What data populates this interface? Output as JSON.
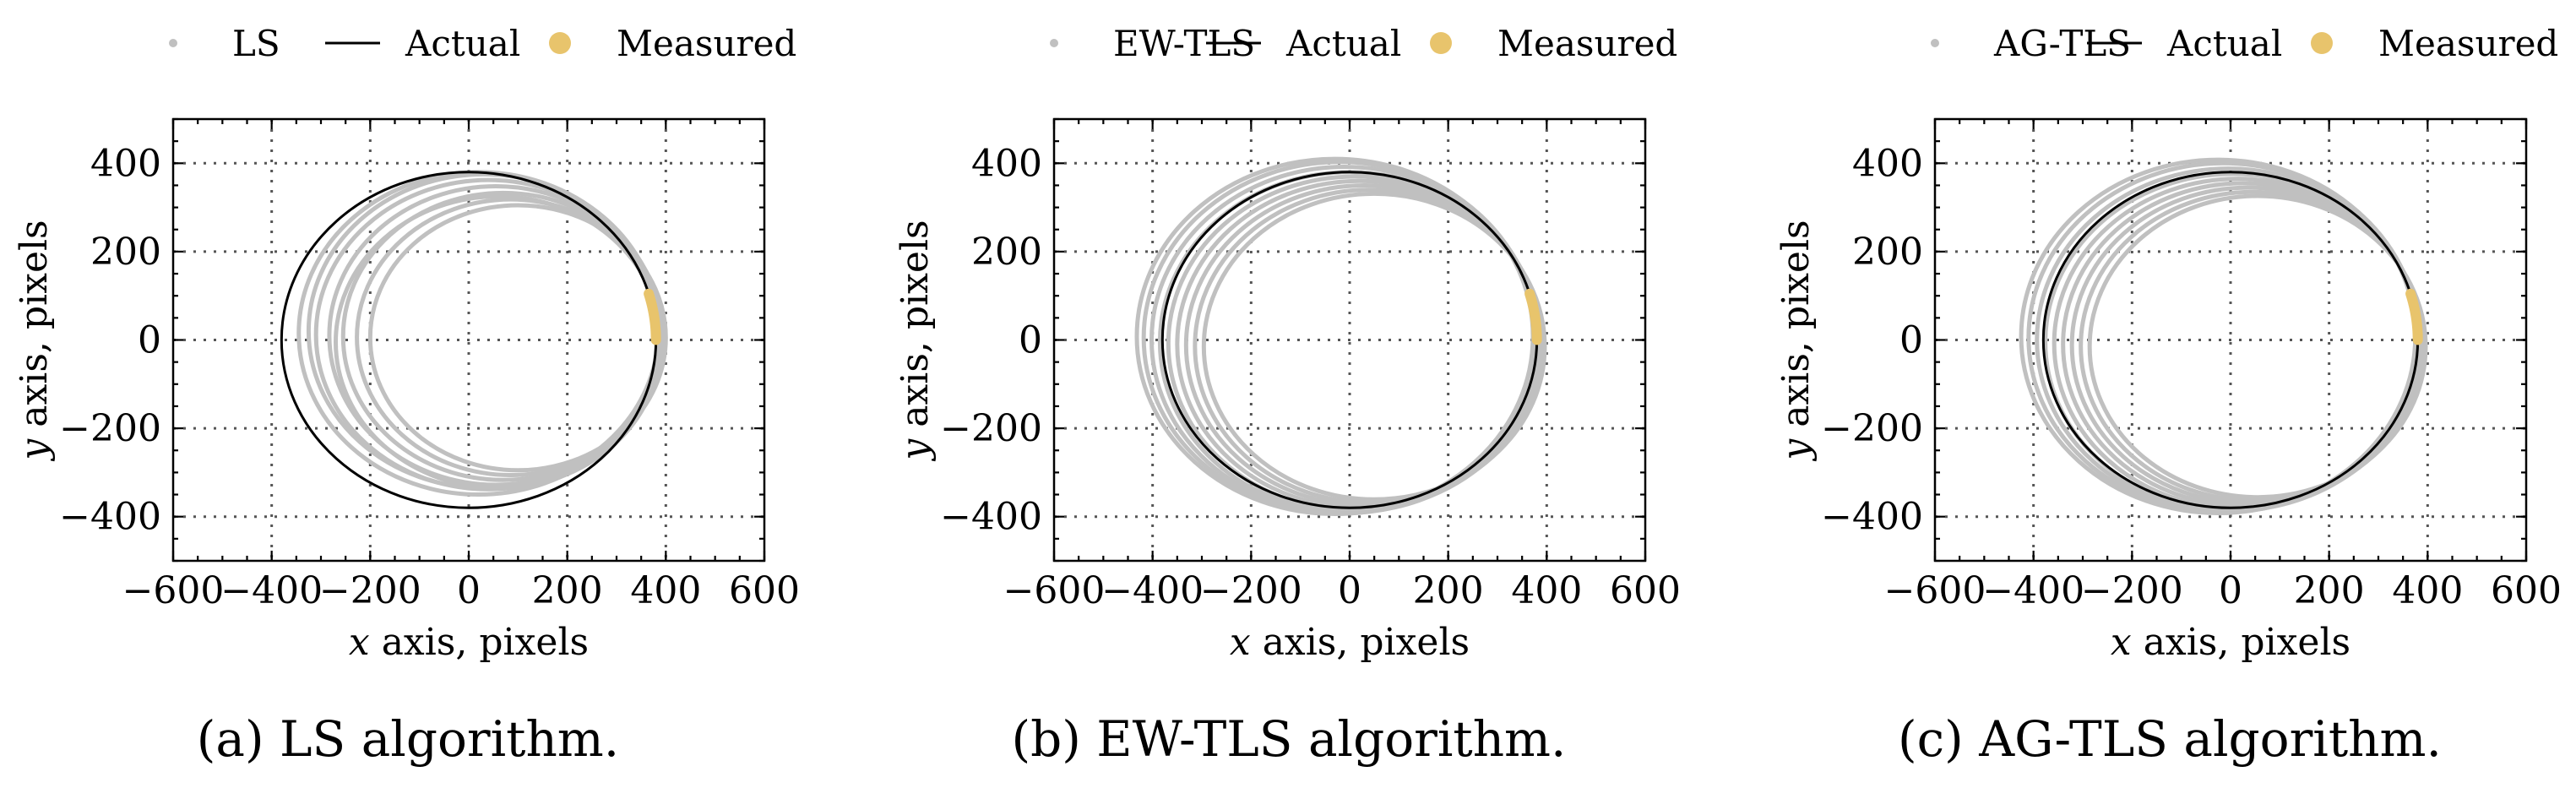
{
  "colors": {
    "estimated": "#c0c0c0",
    "actual": "#000000",
    "measured": "#e8c46c",
    "grid": "#555555"
  },
  "panels": [
    {
      "legend": {
        "estimate_label": "LS",
        "actual_label": "Actual",
        "measured_label": "Measured"
      },
      "xlabel_var": "x",
      "xlabel_rest": " axis, pixels",
      "ylabel_var": "y",
      "ylabel_rest": " axis, pixels",
      "caption": "(a)  LS algorithm."
    },
    {
      "legend": {
        "estimate_label": "EW-TLS",
        "actual_label": "Actual",
        "measured_label": "Measured"
      },
      "xlabel_var": "x",
      "xlabel_rest": " axis, pixels",
      "ylabel_var": "y",
      "ylabel_rest": " axis, pixels",
      "caption": "(b)  EW-TLS algorithm."
    },
    {
      "legend": {
        "estimate_label": "AG-TLS",
        "actual_label": "Actual",
        "measured_label": "Measured"
      },
      "xlabel_var": "x",
      "xlabel_rest": " axis, pixels",
      "ylabel_var": "y",
      "ylabel_rest": " axis, pixels",
      "caption": "(c)  AG-TLS algorithm."
    }
  ],
  "chart_data": [
    {
      "type": "scatter",
      "title": "LS",
      "xlabel": "x axis, pixels",
      "ylabel": "y axis, pixels",
      "xlim": [
        -600,
        600
      ],
      "ylim": [
        -500,
        500
      ],
      "xticks": [
        -600,
        -400,
        -200,
        0,
        200,
        400,
        600
      ],
      "yticks": [
        -400,
        -200,
        0,
        200,
        400
      ],
      "xtick_labels": [
        "−600",
        "−400",
        "−200",
        "0",
        "200",
        "400",
        "600"
      ],
      "ytick_labels": [
        "−400",
        "−200",
        "0",
        "200",
        "400"
      ],
      "grid": true,
      "legend_position": "top",
      "series": [
        {
          "name": "Actual",
          "kind": "circle",
          "center": [
            0,
            0
          ],
          "radius": 380
        },
        {
          "name": "Measured",
          "kind": "arc",
          "center": [
            0,
            0
          ],
          "radius": 380,
          "start_deg": 0,
          "end_deg": 16
        },
        {
          "name": "LS",
          "kind": "estimated_circles",
          "circles": [
            {
              "cx": 20,
              "cy": 15,
              "r": 365
            },
            {
              "cx": 40,
              "cy": 12,
              "r": 350
            },
            {
              "cx": 55,
              "cy": 10,
              "r": 338
            },
            {
              "cx": 70,
              "cy": 8,
              "r": 325
            },
            {
              "cx": 85,
              "cy": 6,
              "r": 312
            },
            {
              "cx": 100,
              "cy": 5,
              "r": 300
            },
            {
              "cx": 60,
              "cy": -5,
              "r": 330
            },
            {
              "cx": 30,
              "cy": 20,
              "r": 355
            }
          ]
        }
      ]
    },
    {
      "type": "scatter",
      "title": "EW-TLS",
      "xlabel": "x axis, pixels",
      "ylabel": "y axis, pixels",
      "xlim": [
        -600,
        600
      ],
      "ylim": [
        -500,
        500
      ],
      "xticks": [
        -600,
        -400,
        -200,
        0,
        200,
        400,
        600
      ],
      "yticks": [
        -400,
        -200,
        0,
        200,
        400
      ],
      "xtick_labels": [
        "−600",
        "−400",
        "−200",
        "0",
        "200",
        "400",
        "600"
      ],
      "ytick_labels": [
        "−400",
        "−200",
        "0",
        "200",
        "400"
      ],
      "grid": true,
      "legend_position": "top",
      "series": [
        {
          "name": "Actual",
          "kind": "circle",
          "center": [
            0,
            0
          ],
          "radius": 380
        },
        {
          "name": "Measured",
          "kind": "arc",
          "center": [
            0,
            0
          ],
          "radius": 380,
          "start_deg": 0,
          "end_deg": 16
        },
        {
          "name": "EW-TLS",
          "kind": "estimated_circles",
          "circles": [
            {
              "cx": -20,
              "cy": 5,
              "r": 398
            },
            {
              "cx": -10,
              "cy": 0,
              "r": 392
            },
            {
              "cx": 0,
              "cy": -5,
              "r": 385
            },
            {
              "cx": 10,
              "cy": -8,
              "r": 378
            },
            {
              "cx": 20,
              "cy": -10,
              "r": 370
            },
            {
              "cx": 30,
              "cy": -12,
              "r": 362
            },
            {
              "cx": 40,
              "cy": -14,
              "r": 354
            },
            {
              "cx": 50,
              "cy": -15,
              "r": 346
            },
            {
              "cx": -30,
              "cy": 8,
              "r": 402
            }
          ]
        }
      ]
    },
    {
      "type": "scatter",
      "title": "AG-TLS",
      "xlabel": "x axis, pixels",
      "ylabel": "y axis, pixels",
      "xlim": [
        -600,
        600
      ],
      "ylim": [
        -500,
        500
      ],
      "xticks": [
        -600,
        -400,
        -200,
        0,
        200,
        400,
        600
      ],
      "yticks": [
        -400,
        -200,
        0,
        200,
        400
      ],
      "xtick_labels": [
        "−600",
        "−400",
        "−200",
        "0",
        "200",
        "400",
        "600"
      ],
      "ytick_labels": [
        "−400",
        "−200",
        "0",
        "200",
        "400"
      ],
      "grid": true,
      "legend_position": "top",
      "series": [
        {
          "name": "Actual",
          "kind": "circle",
          "center": [
            0,
            0
          ],
          "radius": 380
        },
        {
          "name": "Measured",
          "kind": "arc",
          "center": [
            0,
            0
          ],
          "radius": 380,
          "start_deg": 0,
          "end_deg": 16
        },
        {
          "name": "AG-TLS",
          "kind": "estimated_circles",
          "circles": [
            {
              "cx": -15,
              "cy": 5,
              "r": 395
            },
            {
              "cx": -5,
              "cy": 0,
              "r": 388
            },
            {
              "cx": 5,
              "cy": -5,
              "r": 381
            },
            {
              "cx": 15,
              "cy": -8,
              "r": 373
            },
            {
              "cx": 25,
              "cy": -10,
              "r": 365
            },
            {
              "cx": 35,
              "cy": -12,
              "r": 357
            },
            {
              "cx": 45,
              "cy": -14,
              "r": 349
            },
            {
              "cx": 55,
              "cy": -15,
              "r": 341
            },
            {
              "cx": -25,
              "cy": 8,
              "r": 400
            }
          ]
        }
      ]
    }
  ]
}
